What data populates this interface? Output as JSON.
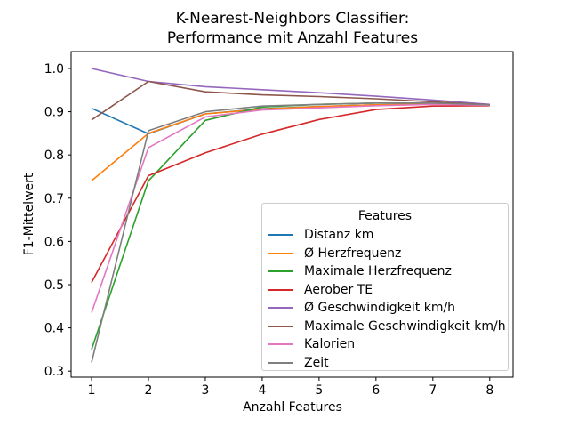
{
  "chart_data": {
    "type": "line",
    "title_lines": [
      "K-Nearest-Neighbors Classifier:",
      "Performance mit Anzahl Features"
    ],
    "xlabel": "Anzahl Features",
    "ylabel": "F1-Mittelwert",
    "grid": false,
    "legend_title": "Features",
    "legend_position": "lower-right-inside",
    "x": [
      1,
      2,
      3,
      4,
      5,
      6,
      7,
      8
    ],
    "xticks": [
      1,
      2,
      3,
      4,
      5,
      6,
      7,
      8
    ],
    "yticks": [
      0.3,
      0.4,
      0.5,
      0.6,
      0.7,
      0.8,
      0.9,
      1.0
    ],
    "xlim": [
      0.64,
      8.41
    ],
    "ylim": [
      0.286,
      1.039
    ],
    "series": [
      {
        "name": "Distanz km",
        "color": "#1f77b4",
        "values": [
          0.908,
          0.849,
          0.895,
          0.907,
          0.912,
          0.916,
          0.918,
          0.915
        ]
      },
      {
        "name": "Ø Herzfrequenz",
        "color": "#ff7f0e",
        "values": [
          0.74,
          0.85,
          0.895,
          0.906,
          0.912,
          0.916,
          0.918,
          0.915
        ]
      },
      {
        "name": "Maximale Herzfrequenz",
        "color": "#2ca02c",
        "values": [
          0.35,
          0.74,
          0.88,
          0.911,
          0.917,
          0.92,
          0.92,
          0.915
        ]
      },
      {
        "name": "Aerober TE",
        "color": "#d62728",
        "values": [
          0.505,
          0.752,
          0.805,
          0.848,
          0.882,
          0.905,
          0.913,
          0.914
        ]
      },
      {
        "name": "Ø Geschwindigkeit km/h",
        "color": "#9467bd",
        "values": [
          1.0,
          0.97,
          0.958,
          0.951,
          0.944,
          0.936,
          0.927,
          0.917
        ]
      },
      {
        "name": "Maximale Geschwindigkeit km/h",
        "color": "#8c564b",
        "values": [
          0.881,
          0.97,
          0.946,
          0.939,
          0.935,
          0.93,
          0.923,
          0.916
        ]
      },
      {
        "name": "Kalorien",
        "color": "#e377c2",
        "values": [
          0.435,
          0.817,
          0.888,
          0.904,
          0.909,
          0.914,
          0.917,
          0.915
        ]
      },
      {
        "name": "Zeit",
        "color": "#7f7f7f",
        "values": [
          0.32,
          0.856,
          0.9,
          0.913,
          0.917,
          0.92,
          0.92,
          0.916
        ]
      }
    ]
  }
}
